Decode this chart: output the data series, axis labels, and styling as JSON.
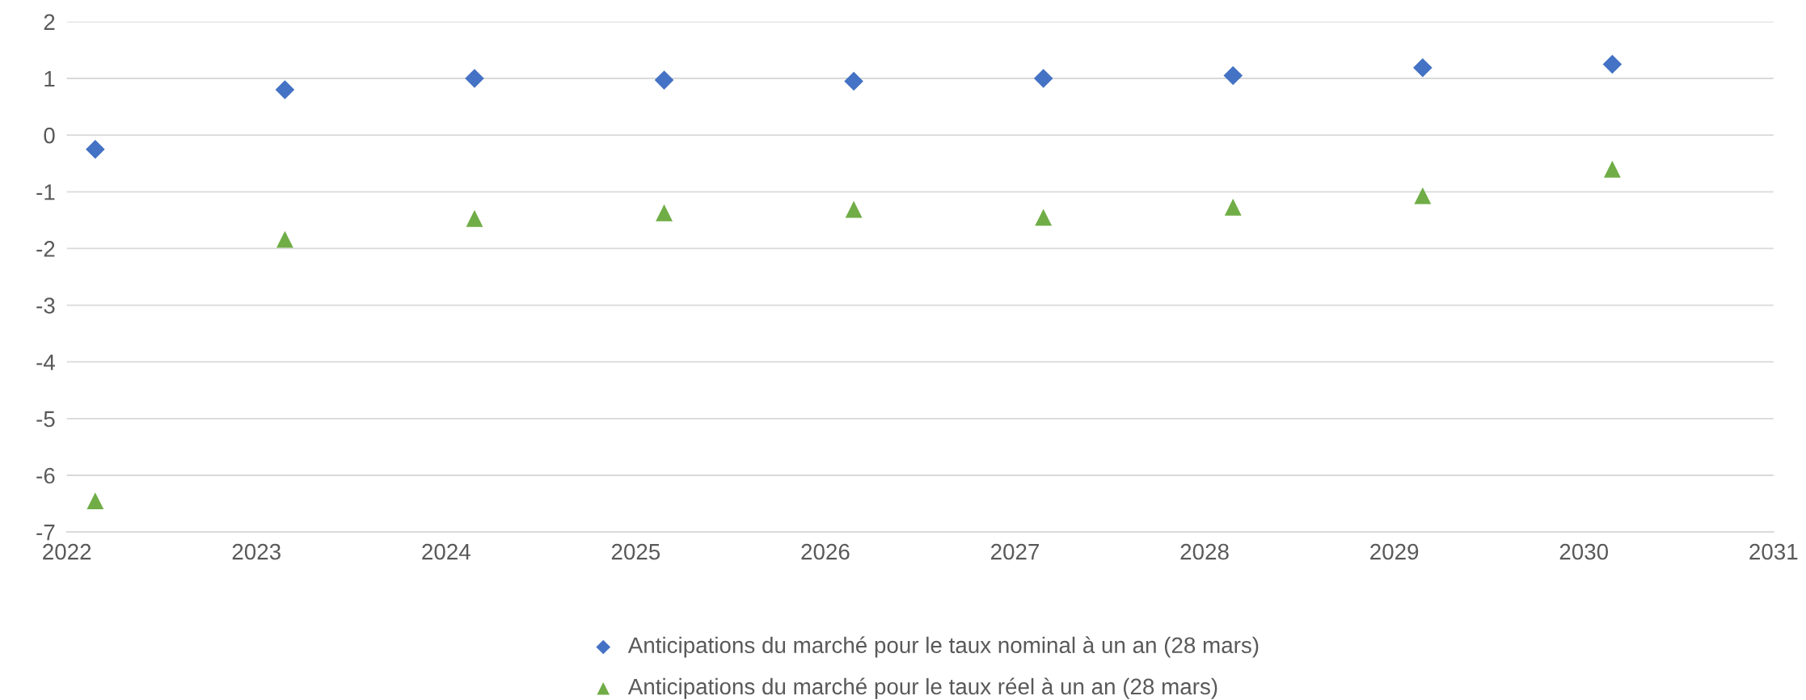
{
  "chart_data": {
    "type": "scatter",
    "x": [
      2022.15,
      2023.15,
      2024.15,
      2025.15,
      2026.15,
      2027.15,
      2028.15,
      2029.15,
      2030.15
    ],
    "series": [
      {
        "name": "Anticipations du marché pour le taux nominal à un an (28 mars)",
        "color": "#4472c4",
        "marker": "diamond",
        "values": [
          -0.25,
          0.8,
          1.0,
          0.97,
          0.95,
          1.0,
          1.05,
          1.19,
          1.25
        ]
      },
      {
        "name": "Anticipations du marché pour le taux réel à un an (28 mars)",
        "color": "#70ad47",
        "marker": "triangle",
        "values": [
          -6.45,
          -1.84,
          -1.47,
          -1.37,
          -1.31,
          -1.45,
          -1.27,
          -1.07,
          -0.6
        ]
      }
    ],
    "xlim": [
      2022,
      2031
    ],
    "xticks": [
      2022,
      2023,
      2024,
      2025,
      2026,
      2027,
      2028,
      2029,
      2030,
      2031
    ],
    "ylim": [
      -7,
      2
    ],
    "yticks": [
      -7,
      -6,
      -5,
      -4,
      -3,
      -2,
      -1,
      0,
      1,
      2
    ],
    "grid": "y",
    "legend": "bottom"
  }
}
